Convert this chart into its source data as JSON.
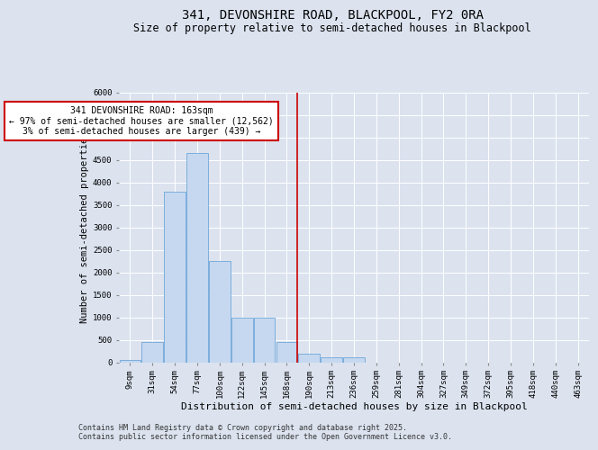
{
  "title": "341, DEVONSHIRE ROAD, BLACKPOOL, FY2 0RA",
  "subtitle": "Size of property relative to semi-detached houses in Blackpool",
  "xlabel": "Distribution of semi-detached houses by size in Blackpool",
  "ylabel": "Number of semi-detached properties",
  "bin_labels": [
    "9sqm",
    "31sqm",
    "54sqm",
    "77sqm",
    "100sqm",
    "122sqm",
    "145sqm",
    "168sqm",
    "190sqm",
    "213sqm",
    "236sqm",
    "259sqm",
    "281sqm",
    "304sqm",
    "327sqm",
    "349sqm",
    "372sqm",
    "395sqm",
    "418sqm",
    "440sqm",
    "463sqm"
  ],
  "bar_heights": [
    50,
    450,
    3800,
    4650,
    2250,
    1000,
    1000,
    450,
    200,
    120,
    120,
    0,
    0,
    0,
    0,
    0,
    0,
    0,
    0,
    0,
    0
  ],
  "bar_color": "#c5d8f0",
  "bar_edgecolor": "#5b9bd5",
  "background_color": "#dce3ef",
  "plot_bg_color": "#dce3ef",
  "grid_color": "#ffffff",
  "vline_x": 7.48,
  "vline_color": "#cc0000",
  "annotation_text": "341 DEVONSHIRE ROAD: 163sqm\n← 97% of semi-detached houses are smaller (12,562)\n3% of semi-detached houses are larger (439) →",
  "annotation_box_facecolor": "#ffffff",
  "annotation_box_edgecolor": "#cc0000",
  "ylim": [
    0,
    6000
  ],
  "yticks": [
    0,
    500,
    1000,
    1500,
    2000,
    2500,
    3000,
    3500,
    4000,
    4500,
    5000,
    5500,
    6000
  ],
  "footer_text": "Contains HM Land Registry data © Crown copyright and database right 2025.\nContains public sector information licensed under the Open Government Licence v3.0.",
  "title_fontsize": 10,
  "subtitle_fontsize": 8.5,
  "xlabel_fontsize": 8,
  "ylabel_fontsize": 7.5,
  "tick_fontsize": 6.5,
  "footer_fontsize": 6,
  "annotation_fontsize": 7
}
